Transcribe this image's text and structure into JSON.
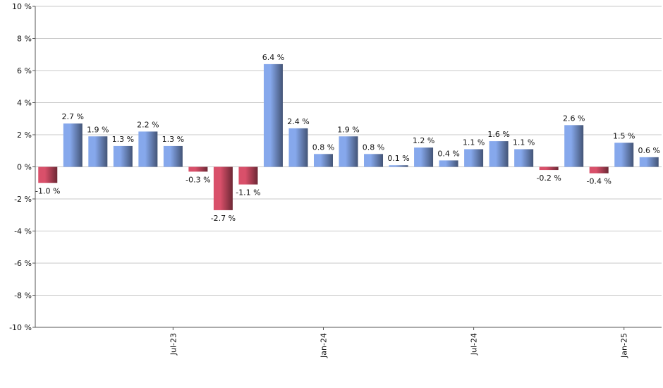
{
  "chart_data": {
    "type": "bar",
    "categories": [
      null,
      null,
      null,
      null,
      null,
      "Jul-23",
      null,
      null,
      null,
      null,
      null,
      "Jan-24",
      null,
      null,
      null,
      null,
      null,
      "Jul-24",
      null,
      null,
      null,
      null,
      null,
      "Jan-25",
      null
    ],
    "values": [
      -1.0,
      2.7,
      1.9,
      1.3,
      2.2,
      1.3,
      -0.3,
      -2.7,
      -1.1,
      6.4,
      2.4,
      0.8,
      1.9,
      0.8,
      0.1,
      1.2,
      0.4,
      1.1,
      1.6,
      1.1,
      -0.2,
      2.6,
      -0.4,
      1.5,
      0.6
    ],
    "value_labels": [
      "-1.0 %",
      "2.7 %",
      "1.9 %",
      "1.3 %",
      "2.2 %",
      "1.3 %",
      "-0.3 %",
      "-2.7 %",
      "-1.1 %",
      "6.4 %",
      "2.4 %",
      "0.8 %",
      "1.9 %",
      "0.8 %",
      "0.1 %",
      "1.2 %",
      "0.4 %",
      "1.1 %",
      "1.6 %",
      "1.1 %",
      "-0.2 %",
      "2.6 %",
      "-0.4 %",
      "1.5 %",
      "0.6 %"
    ],
    "color": "#86a8ec",
    "negative_color": "#d9506a",
    "ylim": [
      -10,
      10
    ],
    "yticks": [
      {
        "value": -10,
        "label": "-10 %"
      },
      {
        "value": -8,
        "label": "-8 %"
      },
      {
        "value": -6,
        "label": "-6 %"
      },
      {
        "value": -4,
        "label": "-4 %"
      },
      {
        "value": -2,
        "label": "-2 %"
      },
      {
        "value": 0,
        "label": "0 %"
      },
      {
        "value": 2,
        "label": "2 %"
      },
      {
        "value": 4,
        "label": "4 %"
      },
      {
        "value": 6,
        "label": "6 %"
      },
      {
        "value": 8,
        "label": "8 %"
      },
      {
        "value": 10,
        "label": "10 %"
      }
    ],
    "grid": true
  }
}
